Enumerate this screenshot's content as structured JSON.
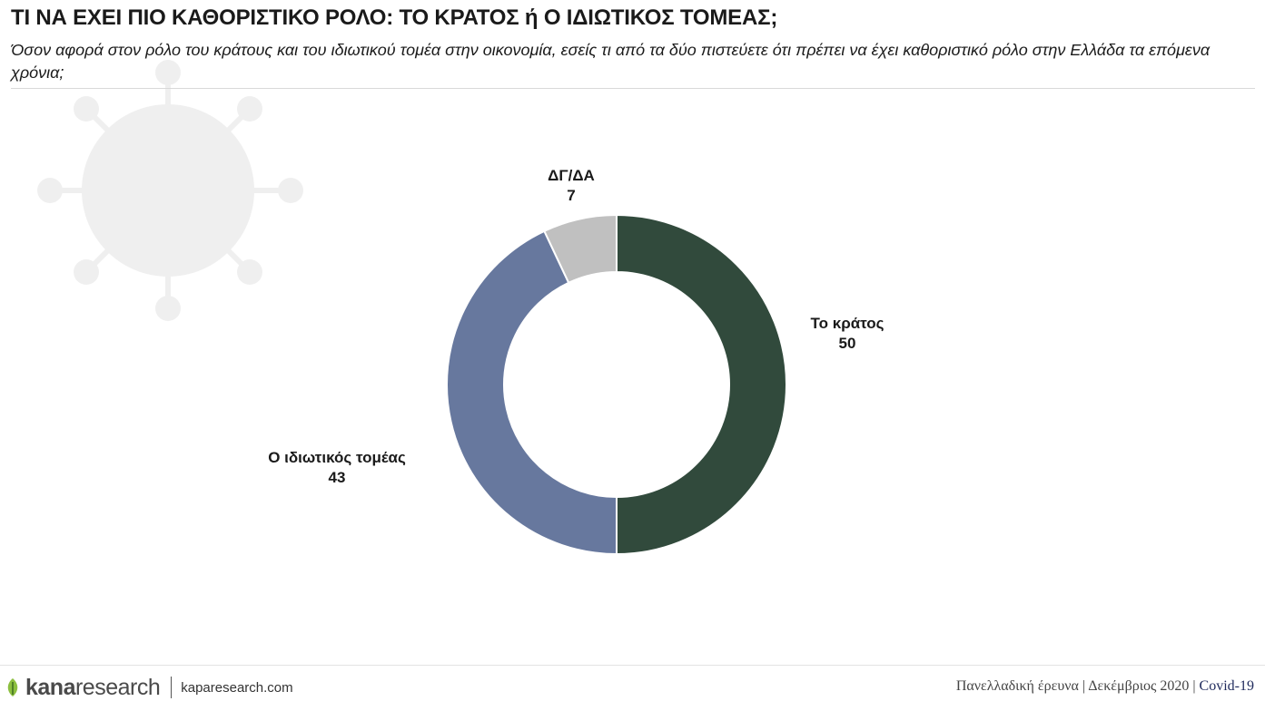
{
  "header": {
    "title": "ΤΙ ΝΑ ΕΧΕΙ ΠΙΟ ΚΑΘΟΡΙΣΤΙΚΟ ΡΟΛΟ: ΤΟ ΚΡΑΤΟΣ ή Ο ΙΔΙΩΤΙΚΟΣ ΤΟΜΕΑΣ;",
    "subtitle": "Όσον αφορά στον ρόλο του κράτους και του ιδιωτικού τομέα στην οικονομία, εσείς τι από τα δύο πιστεύετε ότι πρέπει να έχει καθοριστικό ρόλο στην Ελλάδα τα επόμενα χρόνια;"
  },
  "chart_data": {
    "type": "pie",
    "donut": true,
    "labels": [
      "Το κράτος",
      "Ο ιδιωτικός τομέας",
      "ΔΓ/ΔΑ"
    ],
    "values": [
      50,
      43,
      7
    ],
    "colors": [
      "#314a3c",
      "#67789e",
      "#c0c0c0"
    ],
    "start": "top, clockwise"
  },
  "footer": {
    "logo_kana": "kana",
    "logo_research": "research",
    "url": "kaparesearch.com",
    "survey": "Πανελλαδική έρευνα",
    "date": "Δεκέμβριος 2020",
    "topic": "Covid-19"
  },
  "decor": {
    "background_icon": "virus-icon",
    "logo_icon": "kana-leaf-icon"
  }
}
